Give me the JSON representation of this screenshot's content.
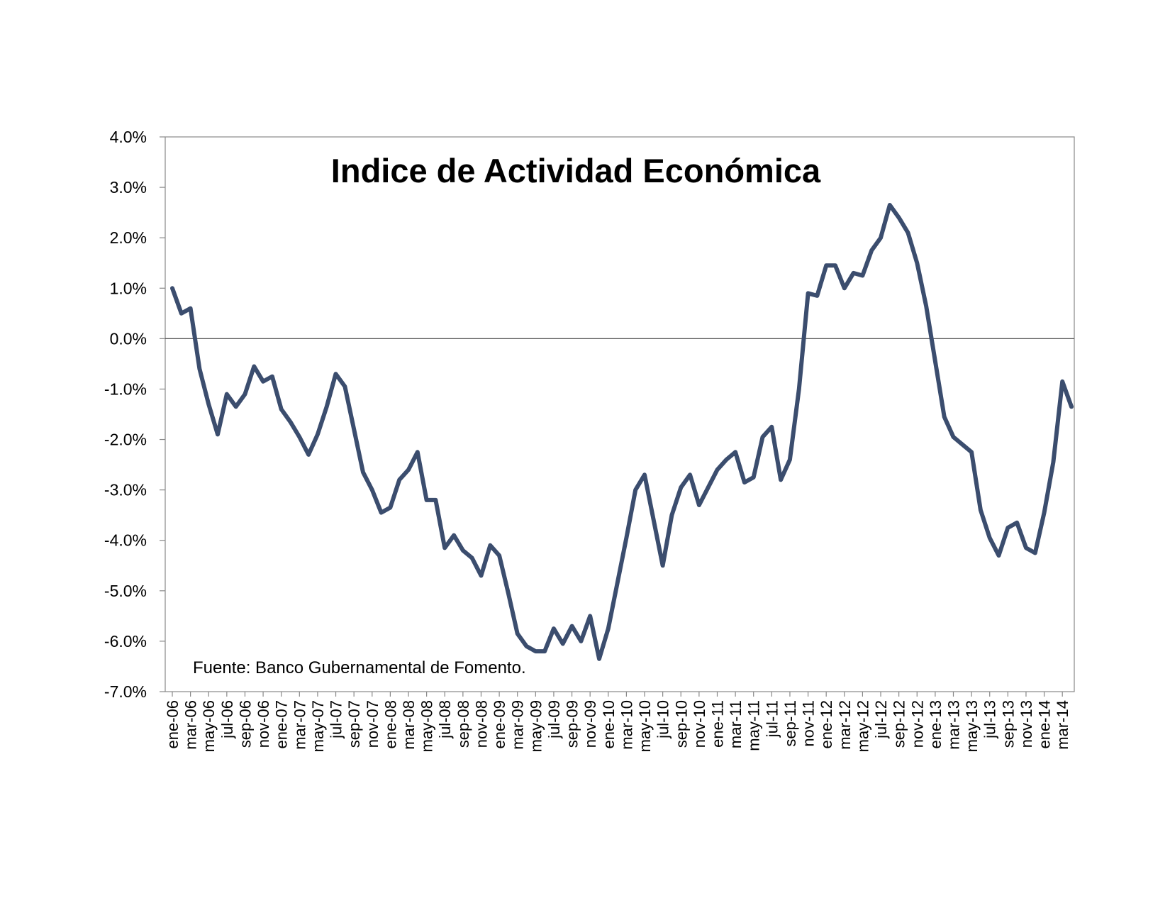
{
  "chart_data": {
    "type": "line",
    "title": "Indice de Actividad Económica",
    "annotation": "Fuente: Banco Gubernamental de Fomento.",
    "xlabel": "",
    "ylabel": "",
    "ylim": [
      -7.0,
      4.0
    ],
    "y_unit": "%",
    "y_ticks": [
      "4.0%",
      "3.0%",
      "2.0%",
      "1.0%",
      "0.0%",
      "-1.0%",
      "-2.0%",
      "-3.0%",
      "-4.0%",
      "-5.0%",
      "-6.0%",
      "-7.0%"
    ],
    "x_tick_labels": [
      "ene-06",
      "mar-06",
      "may-06",
      "jul-06",
      "sep-06",
      "nov-06",
      "ene-07",
      "mar-07",
      "may-07",
      "jul-07",
      "sep-07",
      "nov-07",
      "ene-08",
      "mar-08",
      "may-08",
      "jul-08",
      "sep-08",
      "nov-08",
      "ene-09",
      "mar-09",
      "may-09",
      "jul-09",
      "sep-09",
      "nov-09",
      "ene-10",
      "mar-10",
      "may-10",
      "jul-10",
      "sep-10",
      "nov-10",
      "ene-11",
      "mar-11",
      "may-11",
      "jul-11",
      "sep-11",
      "nov-11",
      "ene-12",
      "mar-12",
      "may-12",
      "jul-12",
      "sep-12",
      "nov-12",
      "ene-13",
      "mar-13",
      "may-13",
      "jul-13",
      "sep-13",
      "nov-13",
      "ene-14",
      "mar-14"
    ],
    "grid": false,
    "legend": "none",
    "zero_line": true,
    "line_color": "#3b4d6e",
    "series": [
      {
        "values": [
          1.0,
          0.5,
          0.6,
          -0.6,
          -1.3,
          -1.9,
          -1.1,
          -1.35,
          -1.1,
          -0.55,
          -0.85,
          -0.75,
          -1.4,
          -1.65,
          -1.95,
          -2.3,
          -1.9,
          -1.35,
          -0.7,
          -0.95,
          -1.8,
          -2.65,
          -3.0,
          -3.45,
          -3.35,
          -2.8,
          -2.6,
          -2.25,
          -3.2,
          -3.2,
          -4.15,
          -3.9,
          -4.2,
          -4.35,
          -4.7,
          -4.1,
          -4.3,
          -5.05,
          -5.85,
          -6.1,
          -6.2,
          -6.2,
          -5.75,
          -6.05,
          -5.7,
          -6.0,
          -5.5,
          -6.35,
          -5.75,
          -4.85,
          -3.95,
          -3.0,
          -2.7,
          -3.6,
          -4.5,
          -3.5,
          -2.95,
          -2.7,
          -3.3,
          -2.95,
          -2.6,
          -2.4,
          -2.25,
          -2.85,
          -2.75,
          -1.95,
          -1.75,
          -2.8,
          -2.4,
          -1.0,
          0.9,
          0.85,
          1.45,
          1.45,
          1.0,
          1.3,
          1.25,
          1.75,
          2.0,
          2.65,
          2.4,
          2.1,
          1.5,
          0.65,
          -0.45,
          -1.55,
          -1.95,
          -2.1,
          -2.25,
          -3.4,
          -3.95,
          -4.3,
          -3.75,
          -3.65,
          -4.15,
          -4.25,
          -3.45,
          -2.45,
          -0.85,
          -1.35
        ]
      }
    ]
  }
}
